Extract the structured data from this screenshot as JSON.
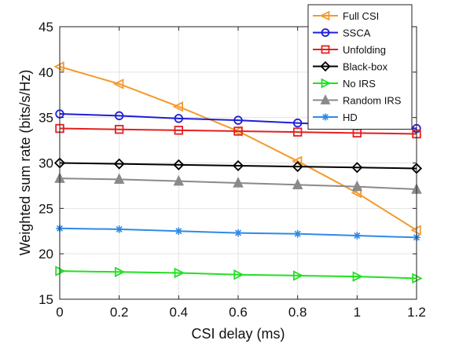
{
  "chart_data": {
    "type": "line",
    "xlabel": "CSI delay (ms)",
    "ylabel": "Weighted sum rate (bits/s/Hz)",
    "xlim": [
      0,
      1.2
    ],
    "ylim": [
      15,
      45
    ],
    "xticks": [
      0,
      0.2,
      0.4,
      0.6,
      0.8,
      1,
      1.2
    ],
    "xtick_labels": [
      "0",
      "0.2",
      "0.4",
      "0.6",
      "0.8",
      "1",
      "1.2"
    ],
    "yticks": [
      15,
      20,
      25,
      30,
      35,
      40,
      45
    ],
    "ytick_labels": [
      "15",
      "20",
      "25",
      "30",
      "35",
      "40",
      "45"
    ],
    "grid": true,
    "legend_position": "top-right",
    "x": [
      0,
      0.2,
      0.4,
      0.6,
      0.8,
      1.0,
      1.2
    ],
    "series": [
      {
        "name": "Full CSI",
        "color": "#f39a2c",
        "marker": "triangle-left",
        "values": [
          40.6,
          38.7,
          36.2,
          33.5,
          30.2,
          26.7,
          22.6
        ]
      },
      {
        "name": "SSCA",
        "color": "#1f1fd6",
        "marker": "circle",
        "values": [
          35.4,
          35.2,
          34.9,
          34.7,
          34.4,
          34.1,
          33.8
        ]
      },
      {
        "name": "Unfolding",
        "color": "#e32020",
        "marker": "square",
        "values": [
          33.8,
          33.7,
          33.6,
          33.5,
          33.4,
          33.3,
          33.2
        ]
      },
      {
        "name": "Black-box",
        "color": "#000000",
        "marker": "diamond",
        "values": [
          30.0,
          29.9,
          29.8,
          29.7,
          29.6,
          29.5,
          29.4
        ]
      },
      {
        "name": "No IRS",
        "color": "#22e022",
        "marker": "triangle-right",
        "values": [
          18.1,
          18.0,
          17.9,
          17.7,
          17.6,
          17.5,
          17.3
        ]
      },
      {
        "name": "Random IRS",
        "color": "#8a8a8a",
        "marker": "triangle-up",
        "values": [
          28.3,
          28.2,
          28.0,
          27.8,
          27.6,
          27.4,
          27.1
        ]
      },
      {
        "name": "HD",
        "color": "#2e8ae6",
        "marker": "asterisk",
        "values": [
          22.8,
          22.7,
          22.5,
          22.3,
          22.2,
          22.0,
          21.8
        ]
      }
    ]
  }
}
